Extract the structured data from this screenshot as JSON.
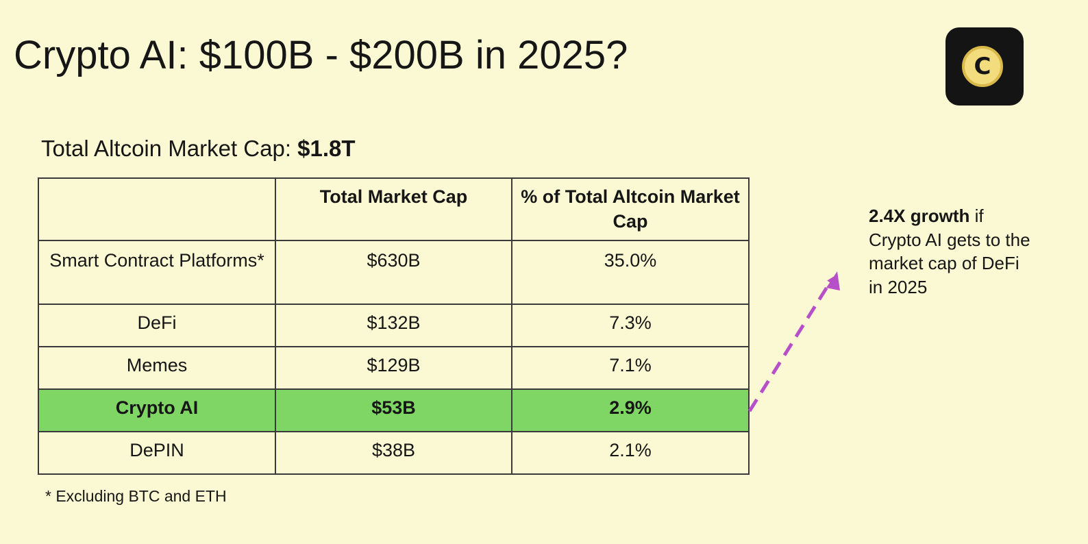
{
  "title": "Crypto AI: $100B - $200B in 2025?",
  "logo": {
    "letter": "C"
  },
  "subtitle": {
    "label": "Total Altcoin Market Cap:",
    "value": "$1.8T"
  },
  "table": {
    "headers": [
      "",
      "Total Market Cap",
      "% of Total Altcoin Market Cap"
    ],
    "rows": [
      {
        "category": "Smart Contract Platforms*",
        "market_cap": "$630B",
        "percent": "35.0%"
      },
      {
        "category": "DeFi",
        "market_cap": "$132B",
        "percent": "7.3%"
      },
      {
        "category": "Memes",
        "market_cap": "$129B",
        "percent": "7.1%"
      },
      {
        "category": "Crypto AI",
        "market_cap": "$53B",
        "percent": "2.9%",
        "highlighted": true
      },
      {
        "category": "DePIN",
        "market_cap": "$38B",
        "percent": "2.1%"
      }
    ]
  },
  "footnote": "* Excluding BTC and ETH",
  "callout": {
    "bold": "2.4X growth",
    "text": " if Crypto AI gets to the market cap of DeFi in 2025"
  },
  "colors": {
    "background": "#fbf9d3",
    "highlight_row": "#7fd665",
    "arrow": "#b64fc8"
  }
}
